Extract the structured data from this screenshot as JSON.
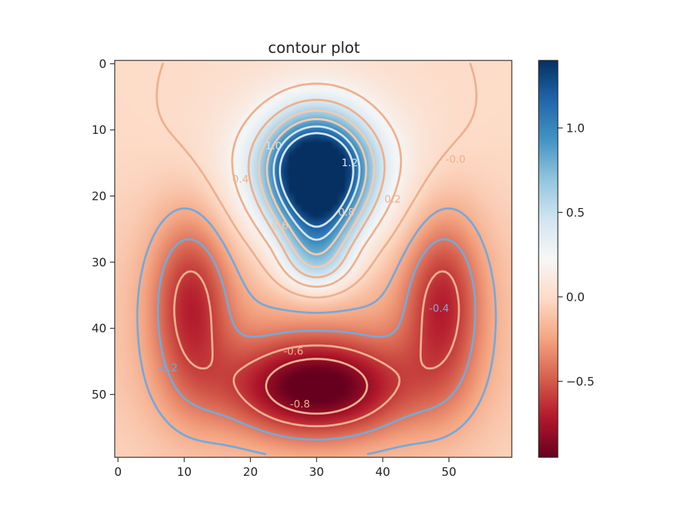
{
  "chart_data": {
    "type": "heatmap",
    "title": "contour plot",
    "xlabel": "",
    "ylabel": "",
    "grid": false,
    "x_ticks": [
      0,
      10,
      20,
      30,
      40,
      50
    ],
    "y_ticks": [
      0,
      10,
      20,
      30,
      40,
      50
    ],
    "x_tick_labels": [
      "0",
      "10",
      "20",
      "30",
      "40",
      "50"
    ],
    "y_tick_labels": [
      "0",
      "10",
      "20",
      "30",
      "40",
      "50"
    ],
    "xlim": [
      -0.5,
      59.5
    ],
    "ylim": [
      59.5,
      -0.5
    ],
    "grid_size": [
      60,
      60
    ],
    "colormap": "RdBu",
    "value_range": [
      -0.95,
      1.4
    ],
    "colorbar": {
      "ticks": [
        1.0,
        0.5,
        0.0,
        -0.5
      ],
      "tick_labels": [
        "1.0",
        "0.5",
        "0.0",
        "−0.5"
      ]
    },
    "features": [
      {
        "kind": "peak",
        "x": 30,
        "y": 15,
        "value": 1.4
      },
      {
        "kind": "trough",
        "x": 30,
        "y": 49,
        "value": -0.95
      }
    ],
    "contour_labels": [
      {
        "text": "1.0",
        "x": 23.5,
        "y": 12.5
      },
      {
        "text": "1.2",
        "x": 35,
        "y": 15
      },
      {
        "text": "0.4",
        "x": 18.5,
        "y": 17.5
      },
      {
        "text": "0.6",
        "x": 24.5,
        "y": 24.5
      },
      {
        "text": "0.8",
        "x": 34.5,
        "y": 22.5
      },
      {
        "text": "0.2",
        "x": 41.5,
        "y": 20.5
      },
      {
        "text": "-0.0",
        "x": 51,
        "y": 14.5
      },
      {
        "text": "-0.4",
        "x": 48.5,
        "y": 37
      },
      {
        "text": "-0.6",
        "x": 26.5,
        "y": 43.5
      },
      {
        "text": "-0.8",
        "x": 27.5,
        "y": 51.5
      },
      {
        "text": "-0.2",
        "x": 7.5,
        "y": 46
      }
    ]
  },
  "colors": {
    "text": "#262626",
    "cmap_stops": [
      "#67001f",
      "#b2182b",
      "#d6604d",
      "#f4a582",
      "#fddbc7",
      "#f7f7f7",
      "#d1e5f0",
      "#92c5de",
      "#4393c3",
      "#2166ac",
      "#053061"
    ]
  }
}
